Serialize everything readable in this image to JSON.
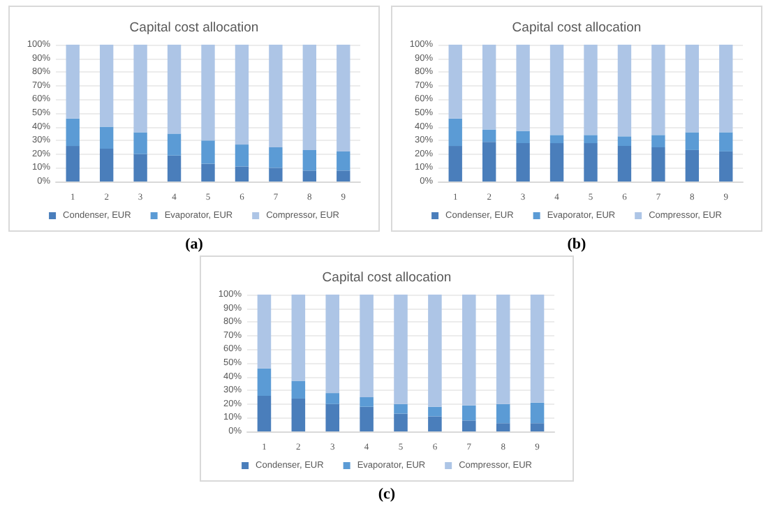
{
  "chart_data": [
    {
      "type": "bar",
      "title": "Capital cost allocation",
      "stacked": true,
      "categories": [
        "1",
        "2",
        "3",
        "4",
        "5",
        "6",
        "7",
        "8",
        "9"
      ],
      "series": [
        {
          "name": "Condenser, EUR",
          "color": "#4a7ebb",
          "values": [
            26,
            24,
            20,
            19,
            13,
            11,
            10,
            8,
            8
          ]
        },
        {
          "name": "Evaporator, EUR",
          "color": "#5b9bd5",
          "values": [
            20,
            16,
            16,
            16,
            17,
            16,
            15,
            15,
            14
          ]
        },
        {
          "name": "Compressor, EUR",
          "color": "#adc5e6",
          "values": [
            54,
            60,
            64,
            65,
            70,
            73,
            75,
            77,
            78
          ]
        }
      ],
      "ylim": [
        0,
        100
      ],
      "yticks": [
        {
          "value": 0,
          "label": "0%"
        },
        {
          "value": 10,
          "label": "10%"
        },
        {
          "value": 20,
          "label": "20%"
        },
        {
          "value": 30,
          "label": "30%"
        },
        {
          "value": 40,
          "label": "40%"
        },
        {
          "value": 50,
          "label": "50%"
        },
        {
          "value": 60,
          "label": "60%"
        },
        {
          "value": 70,
          "label": "70%"
        },
        {
          "value": 80,
          "label": "80%"
        },
        {
          "value": 90,
          "label": "90%"
        },
        {
          "value": 100,
          "label": "100%"
        }
      ],
      "grid": "y",
      "legend": "bottom",
      "annotations": [
        "(a)"
      ]
    },
    {
      "type": "bar",
      "title": "Capital cost allocation",
      "stacked": true,
      "categories": [
        "1",
        "2",
        "3",
        "4",
        "5",
        "6",
        "7",
        "8",
        "9"
      ],
      "series": [
        {
          "name": "Condenser, EUR",
          "color": "#4a7ebb",
          "values": [
            26,
            29,
            28,
            28,
            28,
            26,
            25,
            23,
            22
          ]
        },
        {
          "name": "Evaporator, EUR",
          "color": "#5b9bd5",
          "values": [
            20,
            9,
            9,
            6,
            6,
            7,
            9,
            13,
            14
          ]
        },
        {
          "name": "Compressor, EUR",
          "color": "#adc5e6",
          "values": [
            54,
            62,
            63,
            66,
            66,
            67,
            66,
            64,
            64
          ]
        }
      ],
      "ylim": [
        0,
        100
      ],
      "yticks": [
        {
          "value": 0,
          "label": "0%"
        },
        {
          "value": 10,
          "label": "10%"
        },
        {
          "value": 20,
          "label": "20%"
        },
        {
          "value": 30,
          "label": "30%"
        },
        {
          "value": 40,
          "label": "40%"
        },
        {
          "value": 50,
          "label": "50%"
        },
        {
          "value": 60,
          "label": "60%"
        },
        {
          "value": 70,
          "label": "70%"
        },
        {
          "value": 80,
          "label": "80%"
        },
        {
          "value": 90,
          "label": "90%"
        },
        {
          "value": 100,
          "label": "100%"
        }
      ],
      "grid": "y",
      "legend": "bottom",
      "annotations": [
        "(b)"
      ]
    },
    {
      "type": "bar",
      "title": "Capital cost allocation",
      "stacked": true,
      "categories": [
        "1",
        "2",
        "3",
        "4",
        "5",
        "6",
        "7",
        "8",
        "9"
      ],
      "series": [
        {
          "name": "Condenser, EUR",
          "color": "#4a7ebb",
          "values": [
            26,
            24,
            20,
            18,
            13,
            11,
            8,
            6,
            6
          ]
        },
        {
          "name": "Evaporator, EUR",
          "color": "#5b9bd5",
          "values": [
            20,
            13,
            8,
            7,
            7,
            7,
            11,
            14,
            15
          ]
        },
        {
          "name": "Compressor, EUR",
          "color": "#adc5e6",
          "values": [
            54,
            63,
            72,
            75,
            80,
            82,
            81,
            80,
            79
          ]
        }
      ],
      "ylim": [
        0,
        100
      ],
      "yticks": [
        {
          "value": 0,
          "label": "0%"
        },
        {
          "value": 10,
          "label": "10%"
        },
        {
          "value": 20,
          "label": "20%"
        },
        {
          "value": 30,
          "label": "30%"
        },
        {
          "value": 40,
          "label": "40%"
        },
        {
          "value": 50,
          "label": "50%"
        },
        {
          "value": 60,
          "label": "60%"
        },
        {
          "value": 70,
          "label": "70%"
        },
        {
          "value": 80,
          "label": "80%"
        },
        {
          "value": 90,
          "label": "90%"
        },
        {
          "value": 100,
          "label": "100%"
        }
      ],
      "grid": "y",
      "legend": "bottom",
      "annotations": [
        "(c)"
      ]
    }
  ]
}
